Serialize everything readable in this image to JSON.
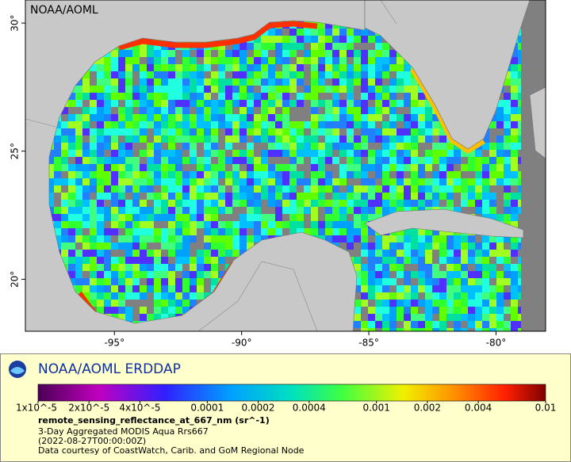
{
  "map": {
    "corner_label": "NOAA/AOML",
    "lonlim": [
      -98.5,
      -78.05
    ],
    "latlim": [
      17.97,
      30.9
    ],
    "lon_ticks": [
      {
        "value": -95,
        "label": "-95°"
      },
      {
        "value": -90,
        "label": "-90°"
      },
      {
        "value": -85,
        "label": "-85°"
      },
      {
        "value": -80,
        "label": "-80°"
      }
    ],
    "lat_ticks": [
      {
        "value": 30,
        "label": "30°"
      },
      {
        "value": 25,
        "label": "25°"
      },
      {
        "value": 20,
        "label": "20°"
      }
    ]
  },
  "legend": {
    "brand": "NOAA/AOML ERDDAP",
    "colorbar": {
      "log_scale": true,
      "lim": [
        1e-05,
        0.01
      ],
      "ticks": [
        {
          "value": 1e-05,
          "label": "1x10^-5"
        },
        {
          "value": 2e-05,
          "label": "2x10^-5"
        },
        {
          "value": 4e-05,
          "label": "4x10^-5"
        },
        0.0001,
        0.0002,
        0.0004,
        0.001,
        0.002,
        0.004,
        0.01
      ]
    },
    "variable": "remote_sensing_reflectance_at_667_nm (sr^-1)",
    "lines": [
      "3-Day Aggregated MODIS Aqua Rrs667",
      "(2022-08-27T00:00:00Z)",
      "Data courtesy of CoastWatch, Carib. and GoM Regional Node"
    ]
  }
}
